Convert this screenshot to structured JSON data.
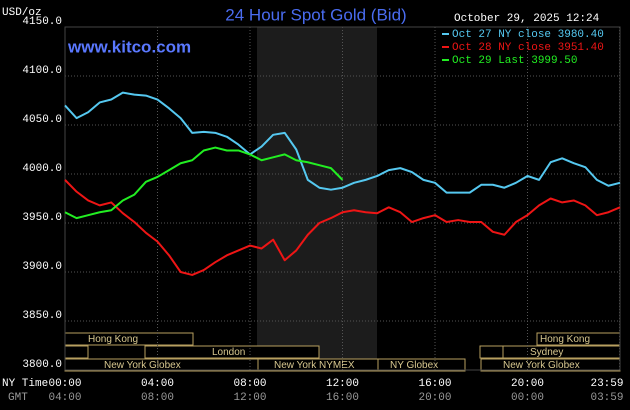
{
  "chart_data": {
    "type": "line",
    "title": "24 Hour Spot Gold (Bid)",
    "timestamp": "October 29, 2025 12:24",
    "source": "www.kitco.com",
    "y_label": "USD/oz",
    "x_label": "NY Time",
    "x2_label": "GMT",
    "x": [
      0,
      0.5,
      1,
      1.5,
      2,
      2.5,
      3,
      3.5,
      4,
      4.5,
      5,
      5.5,
      6,
      6.5,
      7,
      7.5,
      8,
      8.5,
      9,
      9.5,
      10,
      10.5,
      11,
      11.5,
      12,
      12.5,
      13,
      13.5,
      14,
      14.5,
      15,
      15.5,
      16,
      16.5,
      17,
      17.5,
      18,
      18.5,
      19,
      19.5,
      20,
      20.5,
      21,
      21.5,
      22,
      22.5,
      23,
      23.5,
      24
    ],
    "series": [
      {
        "name": "Oct 27 NY close 3980.40",
        "color": "#55c8f0",
        "values": [
          4070,
          4057,
          4063,
          4073,
          4076,
          4083,
          4081,
          4080,
          4076,
          4067,
          4057,
          4042,
          4043,
          4042,
          4038,
          4030,
          4020,
          4028,
          4040,
          4042,
          4025,
          3994,
          3986,
          3984,
          3986,
          3991,
          3994,
          3998,
          4004,
          4006,
          4002,
          3994,
          3991,
          3981,
          3981,
          3981,
          3989,
          3989,
          3986,
          3991,
          3998,
          3994,
          4012,
          4016,
          4011,
          4007,
          3994,
          3988,
          3991
        ]
      },
      {
        "name": "Oct 28 NY close 3951.40",
        "color": "#ee1515",
        "values": [
          3994,
          3982,
          3973,
          3968,
          3971,
          3960,
          3951,
          3940,
          3931,
          3917,
          3900,
          3897,
          3902,
          3910,
          3917,
          3922,
          3927,
          3924,
          3933,
          3912,
          3922,
          3938,
          3950,
          3955,
          3961,
          3963,
          3961,
          3960,
          3966,
          3961,
          3951,
          3955,
          3958,
          3951,
          3953,
          3951,
          3951,
          3941,
          3938,
          3951,
          3958,
          3968,
          3975,
          3971,
          3973,
          3968,
          3958,
          3961,
          3966
        ]
      },
      {
        "name": "Oct 29 Last 3999.50",
        "color": "#22ee22",
        "values": [
          3961,
          3955,
          3958,
          3961,
          3963,
          3973,
          3979,
          3992,
          3997,
          4004,
          4011,
          4014,
          4024,
          4027,
          4024,
          4024,
          4020,
          4014,
          4017,
          4020,
          4014,
          4012,
          4009,
          4006,
          3994,
          null,
          null,
          null,
          null,
          null,
          null,
          null,
          null,
          null,
          null,
          null,
          null,
          null,
          null,
          null,
          null,
          null,
          null,
          null,
          null,
          null,
          null,
          null,
          null
        ]
      }
    ],
    "xlim": [
      0,
      24
    ],
    "xticks": [
      {
        "value": 0,
        "label": "00:00"
      },
      {
        "value": 4,
        "label": "04:00"
      },
      {
        "value": 8,
        "label": "08:00"
      },
      {
        "value": 12,
        "label": "12:00"
      },
      {
        "value": 16,
        "label": "16:00"
      },
      {
        "value": 20,
        "label": "20:00"
      },
      {
        "value": 23.983,
        "label": "23:59"
      }
    ],
    "gmt_labels": [
      "04:00",
      "08:00",
      "12:00",
      "16:00",
      "20:00",
      "00:00",
      "03:59"
    ],
    "ylim": [
      3800,
      4150
    ],
    "yticks": [
      {
        "value": 3800,
        "label": "3800.0"
      },
      {
        "value": 3850,
        "label": "3850.0"
      },
      {
        "value": 3900,
        "label": "3900.0"
      },
      {
        "value": 3950,
        "label": "3950.0"
      },
      {
        "value": 4000,
        "label": "4000.0"
      },
      {
        "value": 4050,
        "label": "4050.0"
      },
      {
        "value": 4100,
        "label": "4100.0"
      },
      {
        "value": 4150,
        "label": "4150.0"
      }
    ],
    "grid": true,
    "sessions": [
      "Hong Kong",
      "Hong Kong",
      "London",
      "Sydney",
      "New York Globex",
      "New York NYMEX",
      "NY Globex",
      "New York Globex"
    ]
  }
}
